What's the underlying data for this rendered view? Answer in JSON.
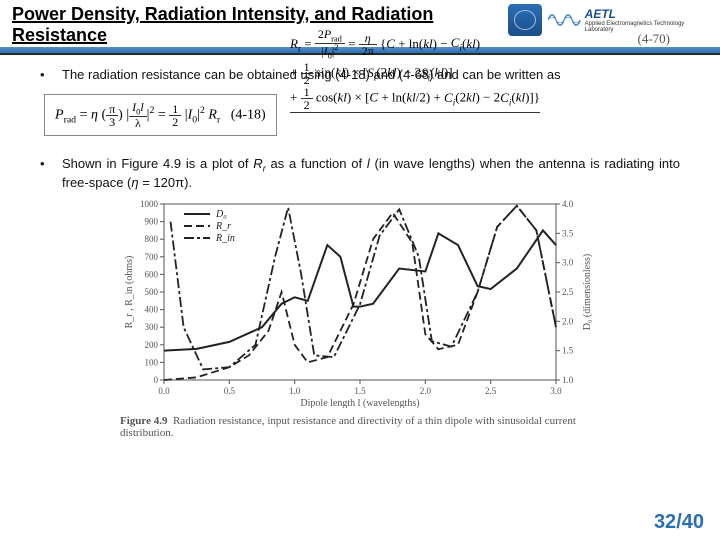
{
  "header": {
    "title": "Power Density, Radiation Intensity, and Radiation Resistance",
    "lab_acronym": "AETL",
    "lab_full": "Applied Electromagnetics Technology Laboratory"
  },
  "bullets": {
    "b1": "The radiation resistance can be obtained using (4-18) and (4-68) and can be written as",
    "b2_html": "Shown in Figure 4.9 is a plot of R_r as a function of l (in wave lengths) when the antenna is radiating into free-space (η = 120π)."
  },
  "equations": {
    "e418_label": "(4-18)",
    "e470_label": "(4-70)",
    "e418": "P_rad = η (π/3) |I₀l/λ|² = ½ |I₀|² R_r",
    "e470_line1": "R_r = 2P_rad / |I₀|² = (η / 2π) { C + ln(kl) − C_i(kl)",
    "e470_line2": "+ ½ sin(kl) × [ S_i(2kl) − 2S_i(kl) ]",
    "e470_line3": "+ ½ cos(kl) × [ C + ln(kl/2) + C_i(2kl) − 2C_i(kl) ] }"
  },
  "figure": {
    "caption_strong": "Figure 4.9",
    "caption_rest": "Radiation resistance, input resistance and directivity of a thin dipole with sinusoidal current distribution.",
    "type": "line",
    "xlabel": "Dipole length l (wavelengths)",
    "ylabel_left": "R_r , R_in (ohms)",
    "ylabel_right": "D₀ (dimensionless)",
    "xlim": [
      0.0,
      3.0
    ],
    "xtick_step": 0.5,
    "ylim_left": [
      0,
      1000
    ],
    "ytick_left_step": 100,
    "ylim_right": [
      1.0,
      4.0
    ],
    "ytick_right_step": 0.5,
    "background_color": "#ffffff",
    "axis_color": "#555555",
    "grid_color": "#aaaaaa",
    "legend": [
      {
        "label": "D₀",
        "dash": "solid",
        "color": "#222222"
      },
      {
        "label": "R_r",
        "dash": "8 4",
        "color": "#222222"
      },
      {
        "label": "R_in",
        "dash": "10 3 3 3",
        "color": "#222222"
      }
    ],
    "series": {
      "D0": {
        "maps_to": "right_axis",
        "color": "#222222",
        "dash": "solid",
        "width": 2,
        "points": [
          [
            0.0,
            1.5
          ],
          [
            0.25,
            1.53
          ],
          [
            0.5,
            1.65
          ],
          [
            0.75,
            1.9
          ],
          [
            0.9,
            2.3
          ],
          [
            1.0,
            2.41
          ],
          [
            1.1,
            2.35
          ],
          [
            1.25,
            3.3
          ],
          [
            1.35,
            3.1
          ],
          [
            1.45,
            2.25
          ],
          [
            1.5,
            2.25
          ],
          [
            1.6,
            2.3
          ],
          [
            1.8,
            2.9
          ],
          [
            2.0,
            2.85
          ],
          [
            2.1,
            3.5
          ],
          [
            2.25,
            3.3
          ],
          [
            2.4,
            2.6
          ],
          [
            2.5,
            2.55
          ],
          [
            2.7,
            2.9
          ],
          [
            2.9,
            3.55
          ],
          [
            3.0,
            3.3
          ]
        ]
      },
      "Rr": {
        "maps_to": "left_axis",
        "color": "#222222",
        "dash": "8 4",
        "width": 1.8,
        "points": [
          [
            0.0,
            0
          ],
          [
            0.25,
            15
          ],
          [
            0.5,
            73
          ],
          [
            0.65,
            140
          ],
          [
            0.8,
            280
          ],
          [
            0.9,
            500
          ],
          [
            1.0,
            200
          ],
          [
            1.1,
            100
          ],
          [
            1.25,
            130
          ],
          [
            1.45,
            430
          ],
          [
            1.6,
            800
          ],
          [
            1.75,
            950
          ],
          [
            1.9,
            780
          ],
          [
            2.0,
            260
          ],
          [
            2.1,
            175
          ],
          [
            2.25,
            200
          ],
          [
            2.4,
            500
          ],
          [
            2.55,
            870
          ],
          [
            2.7,
            990
          ],
          [
            2.85,
            850
          ],
          [
            3.0,
            300
          ]
        ]
      },
      "Rin": {
        "maps_to": "left_axis",
        "color": "#222222",
        "dash": "10 3 3 3",
        "width": 1.8,
        "points": [
          [
            0.05,
            900
          ],
          [
            0.15,
            300
          ],
          [
            0.3,
            60
          ],
          [
            0.5,
            73
          ],
          [
            0.7,
            200
          ],
          [
            0.85,
            700
          ],
          [
            0.95,
            980
          ],
          [
            1.05,
            600
          ],
          [
            1.15,
            140
          ],
          [
            1.3,
            130
          ],
          [
            1.5,
            430
          ],
          [
            1.65,
            820
          ],
          [
            1.8,
            970
          ],
          [
            1.95,
            700
          ],
          [
            2.05,
            220
          ],
          [
            2.2,
            190
          ],
          [
            2.4,
            500
          ],
          [
            2.55,
            870
          ],
          [
            2.7,
            990
          ],
          [
            2.85,
            850
          ],
          [
            3.0,
            300
          ]
        ]
      }
    }
  },
  "page": {
    "current": "32",
    "total": "40"
  },
  "colors": {
    "brand_blue": "#2a6fb5",
    "text": "#111111"
  }
}
